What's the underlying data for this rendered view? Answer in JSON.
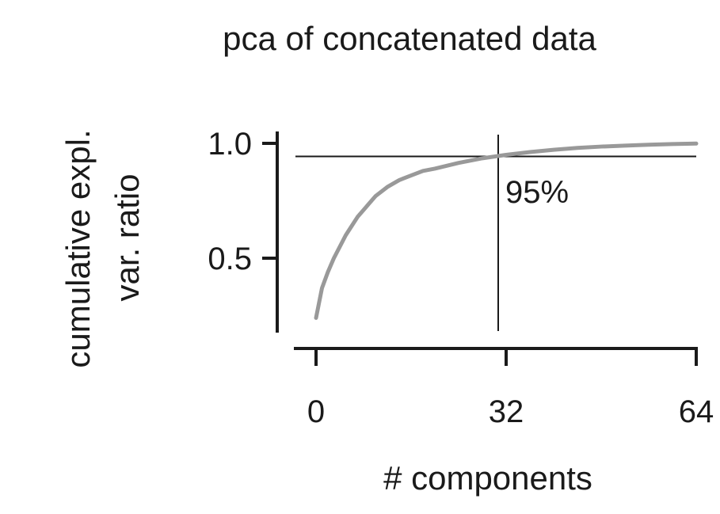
{
  "chart_data": {
    "type": "line",
    "title": "pca of concatenated data",
    "xlabel": "# components",
    "ylabel_lines": [
      "cumulative expl.",
      "var. ratio"
    ],
    "xlim": [
      0,
      64
    ],
    "ylim": [
      0.2,
      1.05
    ],
    "xticks": [
      0,
      32,
      64
    ],
    "xtick_labels": [
      "0",
      "32",
      "64"
    ],
    "yticks": [
      0.5,
      1.0
    ],
    "ytick_labels": [
      "0.5",
      "1.0"
    ],
    "grid": false,
    "series": [
      {
        "color": "#999999",
        "x": [
          0,
          1,
          2,
          3,
          4,
          5,
          6,
          7,
          8,
          9,
          10,
          12,
          14,
          16,
          18,
          20,
          24,
          28,
          32,
          36,
          40,
          44,
          48,
          52,
          56,
          60,
          64
        ],
        "y": [
          0.24,
          0.37,
          0.44,
          0.5,
          0.55,
          0.6,
          0.64,
          0.68,
          0.71,
          0.74,
          0.77,
          0.81,
          0.84,
          0.86,
          0.88,
          0.89,
          0.915,
          0.935,
          0.95,
          0.962,
          0.972,
          0.98,
          0.986,
          0.99,
          0.994,
          0.997,
          0.999
        ]
      }
    ],
    "reference_lines": {
      "horizontal_y": 0.95,
      "vertical_x": 30,
      "label": "95%"
    }
  }
}
